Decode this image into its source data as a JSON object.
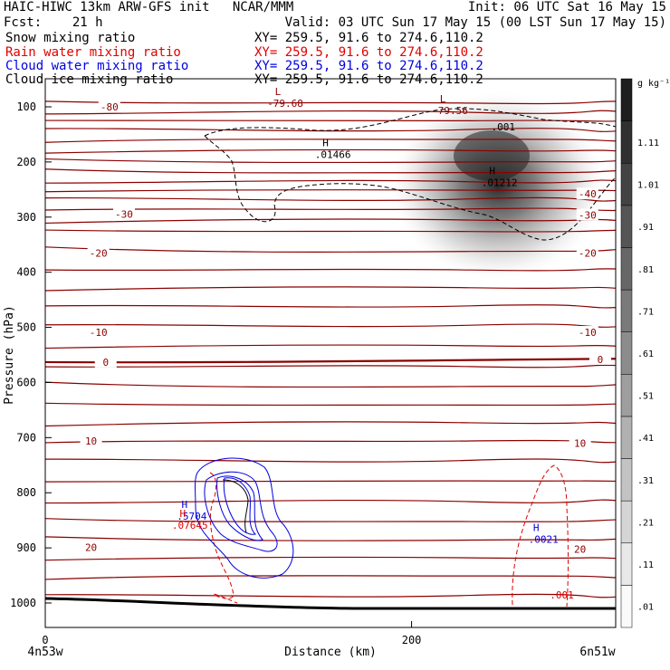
{
  "header": {
    "line1_left": "HAIC-HIWC 13km ARW-GFS init   NCAR/MMM",
    "line1_right": "Init: 06 UTC Sat 16 May 15",
    "line2_left": "Fcst:    21 h",
    "line2_right": "Valid: 03 UTC Sun 17 May 15 (00 LST Sun 17 May 15)",
    "fields": [
      {
        "name": "Snow mixing ratio",
        "xy": "XY= 259.5, 91.6 to 274.6,110.2",
        "color": "#000000"
      },
      {
        "name": "Rain water mixing ratio",
        "xy": "XY= 259.5, 91.6 to 274.6,110.2",
        "color": "#e00000"
      },
      {
        "name": "Cloud water mixing ratio",
        "xy": "XY= 259.5, 91.6 to 274.6,110.2",
        "color": "#0000e0"
      },
      {
        "name": "Cloud ice mixing ratio",
        "xy": "XY= 259.5, 91.6 to 274.6,110.2",
        "color": "#000000"
      }
    ]
  },
  "chart_data": {
    "type": "heatmap",
    "xlabel": "Distance (km)",
    "ylabel": "Pressure (hPa)",
    "x_ticks": [
      0,
      200
    ],
    "x_left_label": "4n53w",
    "x_right_label": "6n51w",
    "y_ticks": [
      100,
      200,
      300,
      400,
      500,
      600,
      700,
      800,
      900,
      1000
    ],
    "ylim": [
      1050,
      50
    ],
    "xlim": [
      0,
      308
    ],
    "colorbar": {
      "unit": "g kg⁻¹",
      "labels": [
        ".01",
        ".11",
        ".21",
        ".31",
        ".41",
        ".51",
        ".61",
        ".71",
        ".81",
        ".91",
        "1.01",
        "1.11"
      ]
    },
    "temperature_contours": [
      {
        "label": "-80",
        "p": 100,
        "x": 35
      },
      {
        "label": "-30",
        "p": 295,
        "x": 43
      },
      {
        "label": "-20",
        "p": 365,
        "x": 29
      },
      {
        "label": "-10",
        "p": 509,
        "x": 29
      },
      {
        "label": "0",
        "p": 563,
        "x": 33
      },
      {
        "label": "10",
        "p": 706,
        "x": 25
      },
      {
        "label": "20",
        "p": 899,
        "x": 25
      },
      {
        "label": "-40",
        "p": 258,
        "x": 296
      },
      {
        "label": "-30",
        "p": 296,
        "x": 296
      },
      {
        "label": "-20",
        "p": 365,
        "x": 296
      },
      {
        "label": "-10",
        "p": 509,
        "x": 296
      },
      {
        "label": "0",
        "p": 558,
        "x": 303
      },
      {
        "label": "10",
        "p": 710,
        "x": 292
      },
      {
        "label": "20",
        "p": 902,
        "x": 292
      }
    ],
    "extrema_labels": [
      {
        "kind": "L",
        "value": "-79.68",
        "x": 131,
        "p": 95,
        "color": "#8b0000"
      },
      {
        "kind": "L",
        "value": "-79.56",
        "x": 221,
        "p": 108,
        "color": "#8b0000"
      },
      {
        "kind": "H",
        "value": ".01466",
        "x": 157,
        "p": 188,
        "color": "#000000"
      },
      {
        "kind": "H",
        "value": ".01212",
        "x": 248,
        "p": 239,
        "color": "#000000"
      },
      {
        "kind": "H",
        "value": ".5704",
        "x": 80,
        "p": 844,
        "color": "#0000e0"
      },
      {
        "kind": "H",
        "value": ".07645",
        "x": 79,
        "p": 860,
        "color": "#e00000"
      },
      {
        "kind": "H",
        "value": ".0021",
        "x": 272,
        "p": 886,
        "color": "#0000e0"
      },
      {
        "kind": "contour",
        "value": ".001",
        "x": 250,
        "p": 138,
        "color": "#000000"
      },
      {
        "kind": "contour",
        "value": ".001",
        "x": 282,
        "p": 987,
        "color": "#e00000"
      }
    ]
  }
}
